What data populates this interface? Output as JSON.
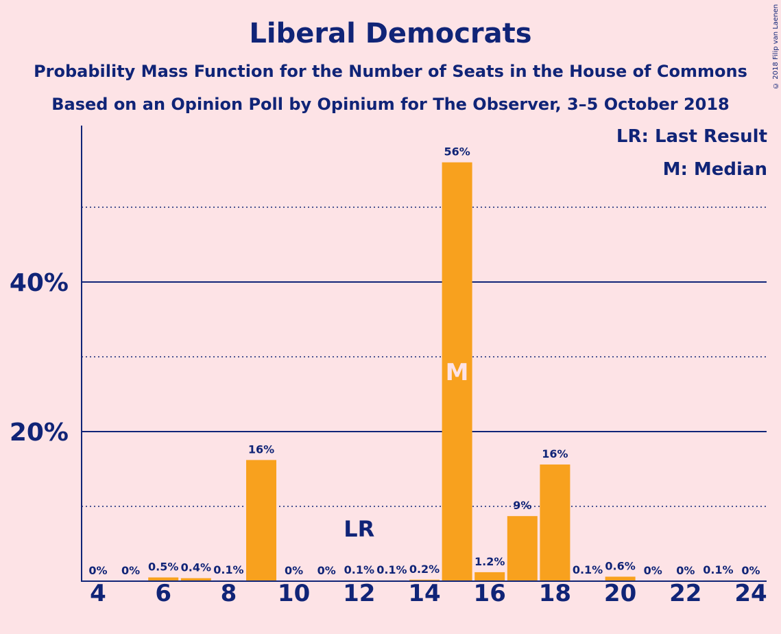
{
  "title": "Liberal Democrats",
  "subtitle_1": "Probability Mass Function for the Number of Seats in the House of Commons",
  "subtitle_2": "Based on an Opinion Poll by Opinium for The Observer, 3–5 October 2018",
  "credit": "© 2018 Filip van Laenen",
  "legend": {
    "last_result": "LR: Last Result",
    "median": "M: Median"
  },
  "colors": {
    "background": "#fde3e6",
    "bar": "#f8a11e",
    "text": "#102477"
  },
  "chart_data": {
    "type": "bar",
    "title": "Liberal Democrats",
    "xlabel": "",
    "ylabel": "",
    "ylim": [
      0,
      60
    ],
    "y_major_ticks": [
      20,
      40
    ],
    "y_tick_labels": [
      "20%",
      "40%"
    ],
    "y_minor_gridlines": [
      10,
      30,
      50
    ],
    "x_tick_labels": [
      "4",
      "6",
      "8",
      "10",
      "12",
      "14",
      "16",
      "18",
      "20",
      "22",
      "24"
    ],
    "seats": [
      4,
      5,
      6,
      7,
      8,
      9,
      10,
      11,
      12,
      13,
      14,
      15,
      16,
      17,
      18,
      19,
      20,
      21,
      22,
      23,
      24
    ],
    "values": [
      0,
      0,
      0.5,
      0.4,
      0.1,
      16.2,
      0,
      0,
      0.1,
      0.1,
      0.2,
      56,
      1.2,
      8.7,
      15.6,
      0.1,
      0.6,
      0,
      0,
      0.1,
      0
    ],
    "labels": [
      "0%",
      "0%",
      "0.5%",
      "0.4%",
      "0.1%",
      "16%",
      "0%",
      "0%",
      "0.1%",
      "0.1%",
      "0.2%",
      "56%",
      "1.2%",
      "9%",
      "16%",
      "0.1%",
      "0.6%",
      "0%",
      "0%",
      "0.1%",
      "0%"
    ],
    "last_result": {
      "seat": 12,
      "marker": "LR"
    },
    "median": {
      "seat": 15,
      "marker": "M"
    }
  }
}
